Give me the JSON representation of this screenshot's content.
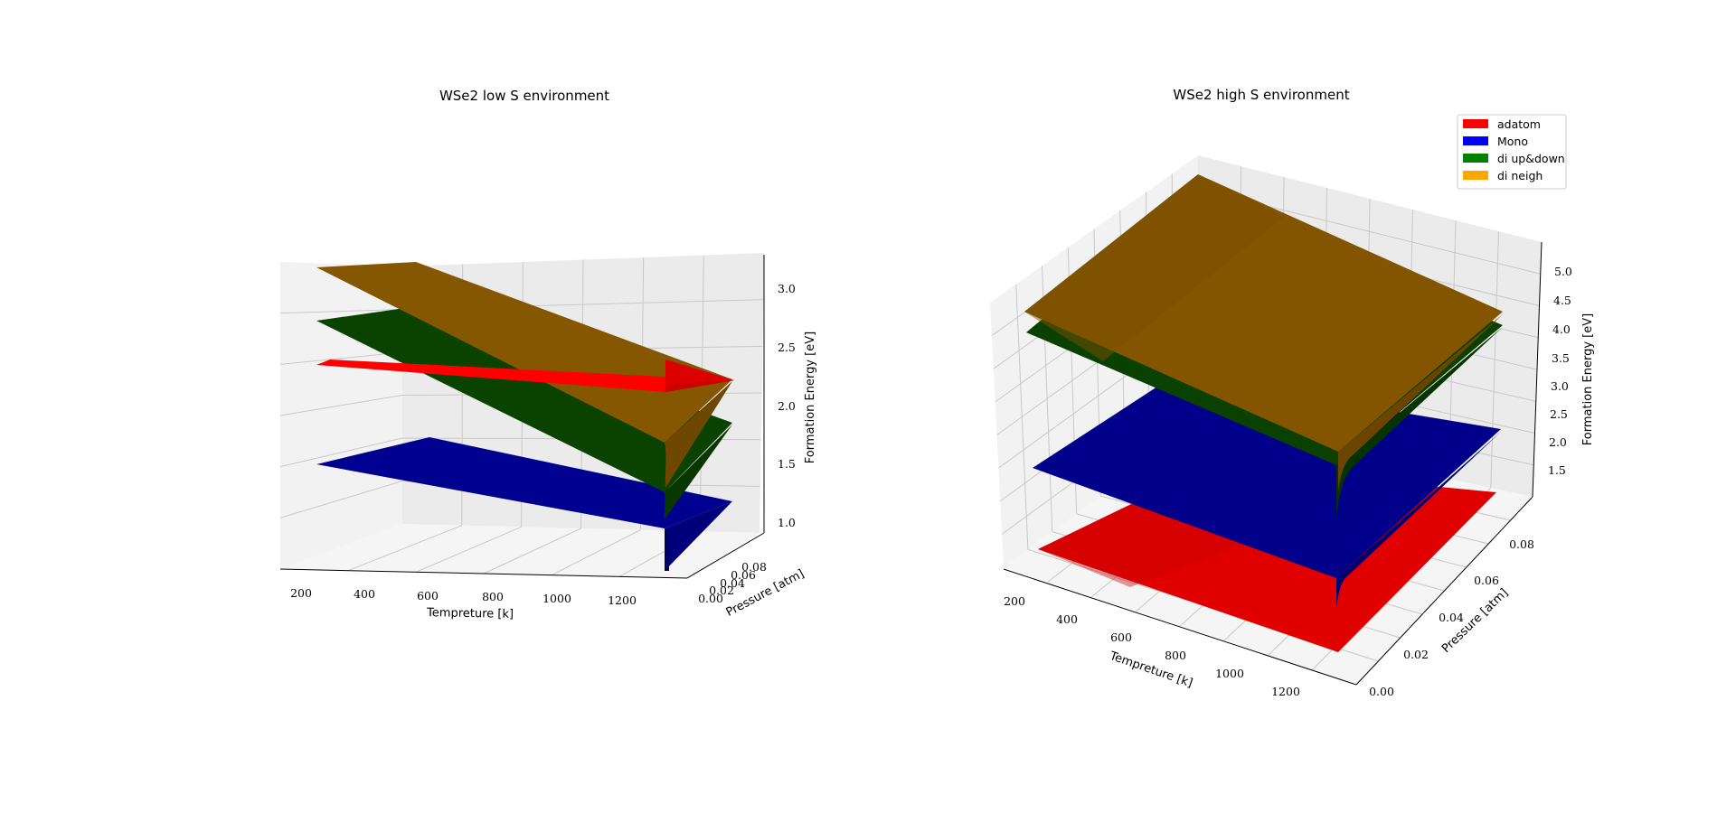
{
  "chart_data": [
    {
      "type": "surface3d",
      "title": "WSe2 low S environment",
      "xlabel": "Tempreture [k]",
      "ylabel": "Pressure [atm]",
      "zlabel": "Formation Energy [eV]",
      "x_ticks": [
        "200",
        "400",
        "600",
        "800",
        "1000",
        "1200"
      ],
      "y_ticks": [
        "0.00",
        "0.02",
        "0.04",
        "0.06",
        "0.08"
      ],
      "z_ticks": [
        "1.0",
        "1.5",
        "2.0",
        "2.5",
        "3.0"
      ],
      "xlim": [
        100,
        1300
      ],
      "ylim": [
        0,
        0.09
      ],
      "zlim": [
        0.8,
        3.2
      ],
      "series": [
        {
          "key": "adatom",
          "color": "#ff0000",
          "z_at_T_max": [
            2.33,
            2.38,
            2.4
          ]
        },
        {
          "key": "Mono",
          "color": "#0000a0",
          "z_at_T_max": [
            1.45,
            0.95,
            1.43
          ]
        },
        {
          "key": "di up&down",
          "color": "#0b4a00",
          "z_at_T_max": [
            2.4,
            1.1,
            2.15
          ]
        },
        {
          "key": "di neigh",
          "color": "#8a5a00",
          "z_at_T_max": [
            3.15,
            1.45,
            2.3
          ]
        }
      ]
    },
    {
      "type": "surface3d",
      "title": "WSe2 high S environment",
      "xlabel": "Tempreture [k]",
      "ylabel": "Pressure [atm]",
      "zlabel": "Formation Energy [eV]",
      "x_ticks": [
        "200",
        "400",
        "600",
        "800",
        "1000",
        "1200"
      ],
      "y_ticks": [
        "0.00",
        "0.02",
        "0.04",
        "0.06",
        "0.08"
      ],
      "z_ticks": [
        "1.5",
        "2.0",
        "2.5",
        "3.0",
        "3.5",
        "4.0",
        "4.5",
        "5.0"
      ],
      "xlim": [
        100,
        1300
      ],
      "ylim": [
        0,
        0.09
      ],
      "zlim": [
        1.2,
        5.4
      ],
      "series": [
        {
          "key": "adatom",
          "color": "#ff0000",
          "z_at_T_max": [
            1.3,
            1.28,
            1.35
          ]
        },
        {
          "key": "Mono",
          "color": "#0000a0",
          "z_at_T_max": [
            3.1,
            2.2,
            3.1
          ]
        },
        {
          "key": "di up&down",
          "color": "#0b4a00",
          "z_at_T_max": [
            4.6,
            3.7,
            4.55
          ]
        },
        {
          "key": "di neigh",
          "color": "#8a5a00",
          "z_at_T_max": [
            5.0,
            3.95,
            4.75
          ]
        }
      ]
    }
  ],
  "legend": {
    "placement": "top-right",
    "items": [
      {
        "label": "adatom",
        "color": "#ff0000"
      },
      {
        "label": "Mono",
        "color": "#0000ff"
      },
      {
        "label": "di up&down",
        "color": "#008000"
      },
      {
        "label": "di neigh",
        "color": "#ffa500"
      }
    ]
  }
}
